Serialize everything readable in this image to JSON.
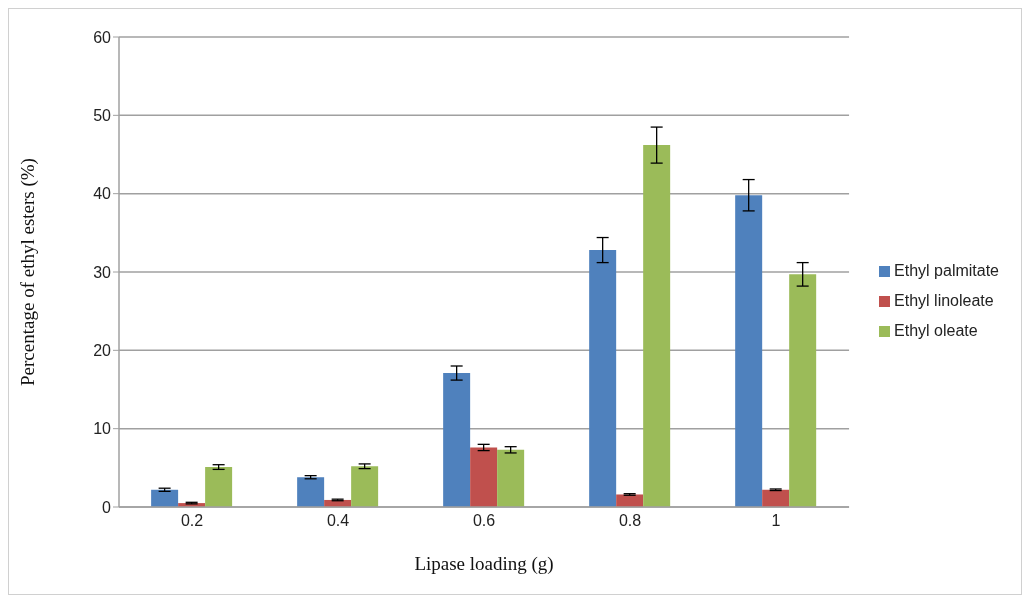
{
  "chart_data": {
    "type": "bar",
    "xlabel": "Lipase loading (g)",
    "ylabel": "Percentage of ethyl esters (%)",
    "categories": [
      "0.2",
      "0.4",
      "0.6",
      "0.8",
      "1"
    ],
    "series": [
      {
        "name": "Ethyl palmitate",
        "color": "#4f81bd",
        "values": [
          2.2,
          3.8,
          17.1,
          32.8,
          39.8
        ],
        "errors": [
          0.2,
          0.2,
          0.9,
          1.6,
          2.0
        ]
      },
      {
        "name": "Ethyl linoleate",
        "color": "#c0504d",
        "values": [
          0.5,
          0.9,
          7.6,
          1.6,
          2.2
        ],
        "errors": [
          0.1,
          0.1,
          0.4,
          0.1,
          0.1
        ]
      },
      {
        "name": "Ethyl oleate",
        "color": "#9bbb59",
        "values": [
          5.1,
          5.2,
          7.3,
          46.2,
          29.7
        ],
        "errors": [
          0.3,
          0.3,
          0.4,
          2.3,
          1.5
        ]
      }
    ],
    "ylim": [
      0,
      60
    ],
    "yticks": [
      0,
      10,
      20,
      30,
      40,
      50,
      60
    ],
    "grid": "y",
    "legend": "right"
  }
}
